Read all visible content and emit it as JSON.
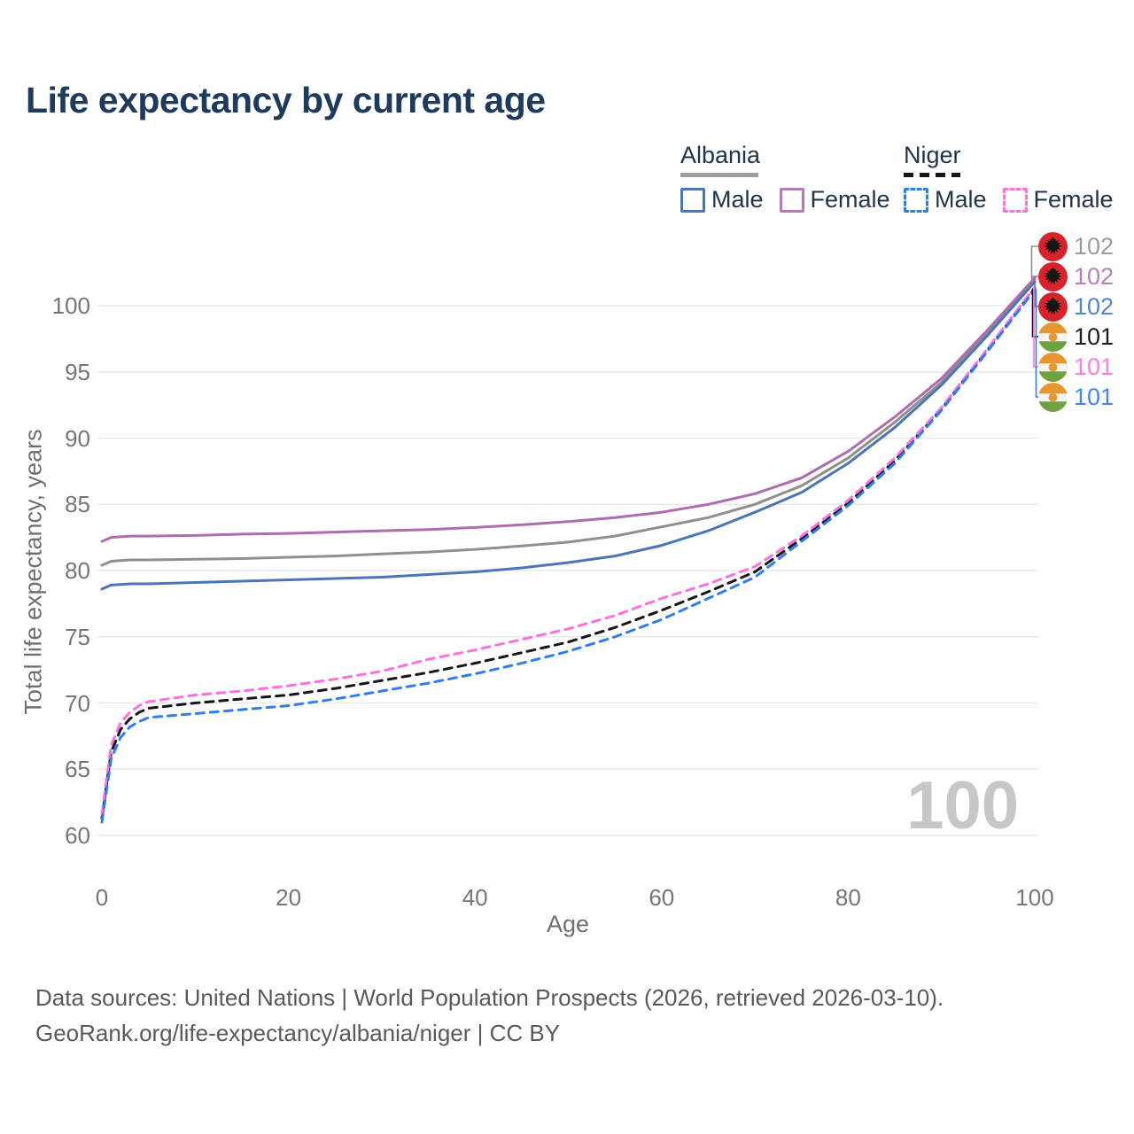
{
  "title": "Life expectancy by current age",
  "watermark": "100",
  "legend": {
    "groups": [
      {
        "name": "Albania",
        "line_style": "solid",
        "rule_color": "#9e9e9e",
        "items": [
          {
            "label": "Male",
            "color": "#4a76b6"
          },
          {
            "label": "Female",
            "color": "#b878b8"
          }
        ]
      },
      {
        "name": "Niger",
        "line_style": "dashed",
        "rule_color": "#161616",
        "items": [
          {
            "label": "Male",
            "color": "#2e7ef2"
          },
          {
            "label": "Female",
            "color": "#ff70dc"
          }
        ]
      }
    ]
  },
  "footer": {
    "line1": "Data sources: United Nations | World Population Prospects (2026, retrieved 2026-03-10).",
    "line2": "GeoRank.org/life-expectancy/albania/niger | CC BY"
  },
  "chart_data": {
    "type": "line",
    "title": "Life expectancy by current age",
    "xlabel": "Age",
    "ylabel": "Total life expectancy, years",
    "xlim": [
      0,
      100
    ],
    "ylim": [
      60,
      103
    ],
    "x_ticks": [
      0,
      20,
      40,
      60,
      80,
      100
    ],
    "y_ticks": [
      60,
      65,
      70,
      75,
      80,
      85,
      90,
      95,
      100
    ],
    "grid": "horizontal",
    "legend_position": "top-right",
    "x": [
      0,
      1,
      2,
      3,
      4,
      5,
      10,
      15,
      20,
      25,
      30,
      35,
      40,
      45,
      50,
      55,
      60,
      65,
      70,
      75,
      80,
      85,
      90,
      95,
      100
    ],
    "series": [
      {
        "name": "Albania",
        "sex": "all",
        "flag": "albania",
        "color": "#8f8f8f",
        "dash": "solid",
        "end_label": "102",
        "end_label_color": "#9b9b9b",
        "values": [
          80.4,
          80.7,
          80.75,
          80.8,
          80.8,
          80.8,
          80.85,
          80.9,
          81.0,
          81.1,
          81.25,
          81.4,
          81.6,
          81.85,
          82.15,
          82.6,
          83.3,
          84.0,
          85.0,
          86.4,
          88.5,
          91.2,
          94.2,
          98.0,
          102.0
        ]
      },
      {
        "name": "Albania",
        "sex": "female",
        "flag": "albania",
        "color": "#ae6cae",
        "dash": "solid",
        "end_label": "102",
        "end_label_color": "#b57fb9",
        "values": [
          82.2,
          82.5,
          82.55,
          82.6,
          82.6,
          82.6,
          82.65,
          82.75,
          82.8,
          82.9,
          83.0,
          83.1,
          83.25,
          83.45,
          83.7,
          84.0,
          84.4,
          85.0,
          85.8,
          87.0,
          89.0,
          91.6,
          94.5,
          98.2,
          102.1
        ]
      },
      {
        "name": "Albania",
        "sex": "male",
        "flag": "albania",
        "color": "#4a76b6",
        "dash": "solid",
        "end_label": "102",
        "end_label_color": "#5585cb",
        "values": [
          78.6,
          78.9,
          78.95,
          79.0,
          79.0,
          79.0,
          79.1,
          79.2,
          79.3,
          79.4,
          79.5,
          79.7,
          79.9,
          80.2,
          80.6,
          81.1,
          81.9,
          83.0,
          84.4,
          85.9,
          88.1,
          90.8,
          94.0,
          97.8,
          101.8
        ]
      },
      {
        "name": "Niger",
        "sex": "all",
        "flag": "niger",
        "color": "#161616",
        "dash": "dashed",
        "end_label": "101",
        "end_label_color": "#1c1c1c",
        "values": [
          61.3,
          66.3,
          68.0,
          68.8,
          69.3,
          69.6,
          70.0,
          70.3,
          70.6,
          71.1,
          71.7,
          72.3,
          73.0,
          73.8,
          74.6,
          75.7,
          77.0,
          78.4,
          79.9,
          82.4,
          85.1,
          88.3,
          92.2,
          96.7,
          101.3
        ]
      },
      {
        "name": "Niger",
        "sex": "female",
        "flag": "niger",
        "color": "#ff70dc",
        "dash": "dashed",
        "end_label": "101",
        "end_label_color": "#ff7ce0",
        "values": [
          61.6,
          66.8,
          68.5,
          69.3,
          69.8,
          70.1,
          70.6,
          70.9,
          71.3,
          71.8,
          72.4,
          73.3,
          74.0,
          74.8,
          75.6,
          76.6,
          77.9,
          79.0,
          80.3,
          82.6,
          85.3,
          88.5,
          92.3,
          96.8,
          101.4
        ]
      },
      {
        "name": "Niger",
        "sex": "male",
        "flag": "niger",
        "color": "#2e7ef2",
        "dash": "dashed",
        "end_label": "101",
        "end_label_color": "#3f86fa",
        "values": [
          61.0,
          65.8,
          67.4,
          68.2,
          68.6,
          68.9,
          69.2,
          69.5,
          69.8,
          70.3,
          70.9,
          71.5,
          72.2,
          73.0,
          73.9,
          75.0,
          76.3,
          77.9,
          79.5,
          82.2,
          84.9,
          88.1,
          92.1,
          96.6,
          101.2
        ]
      }
    ]
  }
}
